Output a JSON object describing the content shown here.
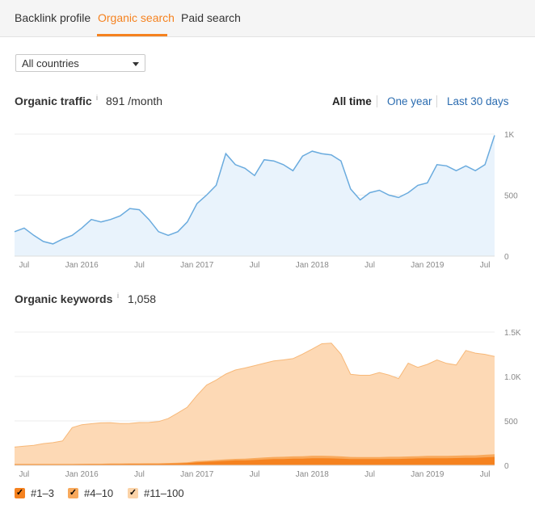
{
  "tabs": [
    {
      "label": "Backlink profile"
    },
    {
      "label": "Organic search"
    },
    {
      "label": "Paid search"
    }
  ],
  "country_select": {
    "value": "All countries"
  },
  "traffic": {
    "title": "Organic traffic",
    "info": "i",
    "value": "891 /month",
    "ranges": [
      {
        "label": "All time"
      },
      {
        "label": "One year"
      },
      {
        "label": "Last 30 days"
      }
    ]
  },
  "keywords": {
    "title": "Organic keywords",
    "info": "i",
    "value": "1,058"
  },
  "x_ticks": [
    "Jul",
    "Jan 2016",
    "Jul",
    "Jan 2017",
    "Jul",
    "Jan 2018",
    "Jul",
    "Jan 2019",
    "Jul"
  ],
  "legend": [
    {
      "label": "#1–3",
      "color": "#f5821f"
    },
    {
      "label": "#4–10",
      "color": "#f8a95c"
    },
    {
      "label": "#11–100",
      "color": "#fbd3a8"
    }
  ],
  "colors": {
    "accent": "#f5821f",
    "traffic_line": "#6aabde",
    "traffic_fill": "#e9f3fc",
    "link": "#2b6cb0"
  },
  "chart_data": [
    {
      "type": "area",
      "title": "Organic traffic",
      "x": [
        "2015-06",
        "2015-07",
        "2015-08",
        "2015-09",
        "2015-10",
        "2015-11",
        "2015-12",
        "2016-01",
        "2016-02",
        "2016-03",
        "2016-04",
        "2016-05",
        "2016-06",
        "2016-07",
        "2016-08",
        "2016-09",
        "2016-10",
        "2016-11",
        "2016-12",
        "2017-01",
        "2017-02",
        "2017-03",
        "2017-04",
        "2017-05",
        "2017-06",
        "2017-07",
        "2017-08",
        "2017-09",
        "2017-10",
        "2017-11",
        "2017-12",
        "2018-01",
        "2018-02",
        "2018-03",
        "2018-04",
        "2018-05",
        "2018-06",
        "2018-07",
        "2018-08",
        "2018-09",
        "2018-10",
        "2018-11",
        "2018-12",
        "2019-01",
        "2019-02",
        "2019-03",
        "2019-04",
        "2019-05",
        "2019-06",
        "2019-07",
        "2019-08"
      ],
      "series": [
        {
          "values": [
            200,
            230,
            170,
            120,
            100,
            140,
            170,
            230,
            300,
            280,
            300,
            330,
            390,
            380,
            300,
            200,
            170,
            200,
            280,
            430,
            500,
            580,
            840,
            750,
            720,
            660,
            790,
            780,
            750,
            700,
            820,
            860,
            840,
            830,
            780,
            550,
            460,
            520,
            540,
            500,
            480,
            520,
            580,
            600,
            750,
            740,
            700,
            740,
            700,
            750,
            990
          ]
        }
      ],
      "yticks": [
        "0",
        "500",
        "1K"
      ],
      "ylim": [
        0,
        1000
      ]
    },
    {
      "type": "area",
      "title": "Organic keywords",
      "x": [
        "2015-06",
        "2015-07",
        "2015-08",
        "2015-09",
        "2015-10",
        "2015-11",
        "2015-12",
        "2016-01",
        "2016-02",
        "2016-03",
        "2016-04",
        "2016-05",
        "2016-06",
        "2016-07",
        "2016-08",
        "2016-09",
        "2016-10",
        "2016-11",
        "2016-12",
        "2017-01",
        "2017-02",
        "2017-03",
        "2017-04",
        "2017-05",
        "2017-06",
        "2017-07",
        "2017-08",
        "2017-09",
        "2017-10",
        "2017-11",
        "2017-12",
        "2018-01",
        "2018-02",
        "2018-03",
        "2018-04",
        "2018-05",
        "2018-06",
        "2018-07",
        "2018-08",
        "2018-09",
        "2018-10",
        "2018-11",
        "2018-12",
        "2019-01",
        "2019-02",
        "2019-03",
        "2019-04",
        "2019-05",
        "2019-06",
        "2019-07",
        "2019-08"
      ],
      "series": [
        {
          "name": "#1–3",
          "values": [
            10,
            10,
            10,
            10,
            10,
            10,
            10,
            12,
            12,
            12,
            14,
            14,
            15,
            15,
            16,
            16,
            18,
            20,
            25,
            35,
            40,
            45,
            50,
            55,
            55,
            60,
            65,
            70,
            70,
            75,
            75,
            80,
            80,
            78,
            75,
            70,
            70,
            70,
            70,
            72,
            72,
            75,
            78,
            80,
            80,
            80,
            82,
            85,
            85,
            90,
            95
          ]
        },
        {
          "name": "#4–10",
          "values": [
            5,
            5,
            5,
            5,
            5,
            5,
            5,
            5,
            6,
            6,
            6,
            6,
            7,
            7,
            7,
            7,
            8,
            9,
            10,
            12,
            13,
            15,
            17,
            18,
            20,
            22,
            24,
            25,
            26,
            26,
            27,
            28,
            28,
            27,
            26,
            25,
            24,
            24,
            24,
            24,
            24,
            25,
            25,
            26,
            26,
            27,
            27,
            28,
            28,
            29,
            30
          ]
        },
        {
          "name": "#11–100",
          "values": [
            190,
            200,
            210,
            230,
            240,
            260,
            410,
            440,
            450,
            460,
            460,
            450,
            450,
            460,
            460,
            470,
            500,
            560,
            620,
            740,
            850,
            900,
            960,
            1000,
            1020,
            1040,
            1060,
            1080,
            1090,
            1100,
            1150,
            1200,
            1260,
            1270,
            1150,
            930,
            920,
            920,
            950,
            920,
            880,
            1050,
            1000,
            1030,
            1080,
            1040,
            1020,
            1180,
            1150,
            1130,
            1100
          ]
        }
      ],
      "yticks": [
        "0",
        "500",
        "1.0K",
        "1.5K"
      ],
      "ylim": [
        0,
        1500
      ]
    }
  ]
}
